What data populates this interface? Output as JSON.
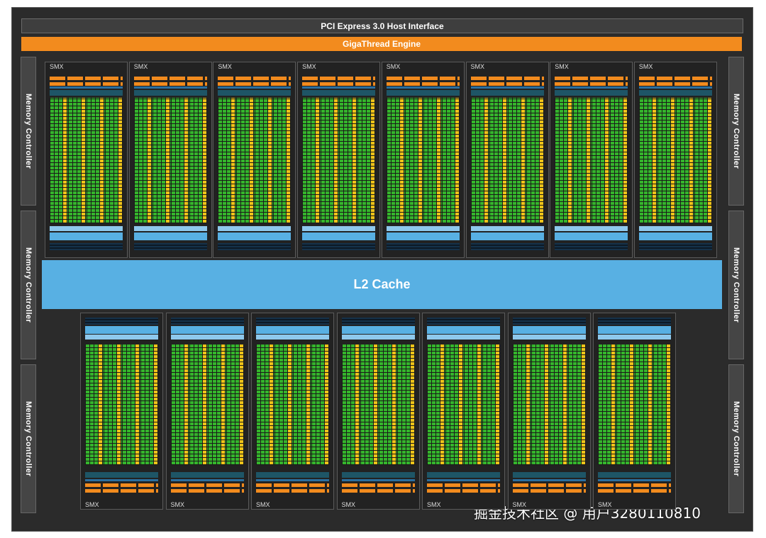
{
  "header": {
    "pcie_label": "PCI Express 3.0 Host Interface",
    "giga_label": "GigaThread Engine"
  },
  "l2_label": "L2 Cache",
  "memory_controllers": [
    {
      "label": "Memory Controller"
    },
    {
      "label": "Memory Controller"
    },
    {
      "label": "Memory Controller"
    },
    {
      "label": "Memory Controller"
    },
    {
      "label": "Memory Controller"
    },
    {
      "label": "Memory Controller"
    }
  ],
  "smx_top": [
    {
      "label": "SMX"
    },
    {
      "label": "SMX"
    },
    {
      "label": "SMX"
    },
    {
      "label": "SMX"
    },
    {
      "label": "SMX"
    },
    {
      "label": "SMX"
    },
    {
      "label": "SMX"
    },
    {
      "label": "SMX"
    }
  ],
  "smx_bottom": [
    {
      "label": "SMX"
    },
    {
      "label": "SMX"
    },
    {
      "label": "SMX"
    },
    {
      "label": "SMX"
    },
    {
      "label": "SMX"
    },
    {
      "label": "SMX"
    },
    {
      "label": "SMX"
    }
  ],
  "watermark": "掘金技术社区 @ 用户3280110810",
  "colors": {
    "core": "#35b52c",
    "special_unit": "#f0c419",
    "engine": "#f28b1e",
    "cache": "#58b0e3",
    "background": "#2b2b2b"
  }
}
